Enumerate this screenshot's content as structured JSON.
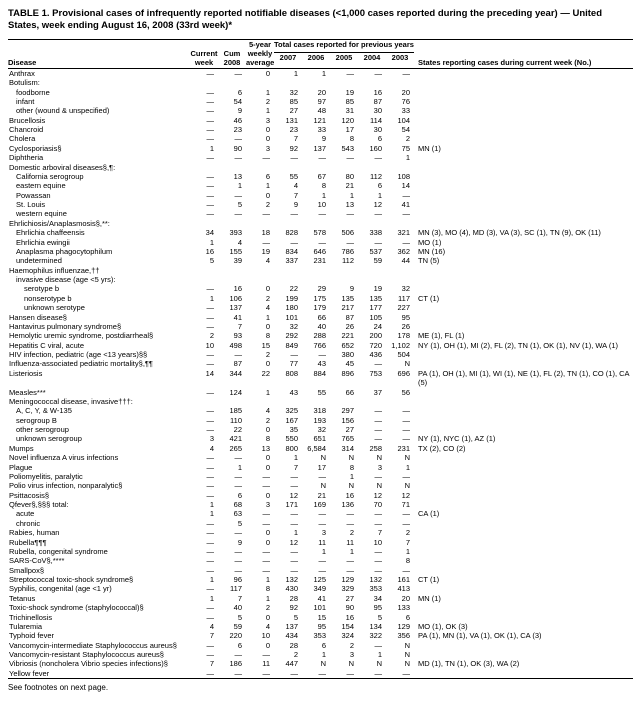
{
  "title": "TABLE 1. Provisional cases of infrequently reported notifiable diseases (<1,000 cases reported during the preceding year) — United States, week ending August 16, 2008 (33rd week)*",
  "footnote": "See footnotes on next page.",
  "head": {
    "disease": "Disease",
    "current_week": "Current week",
    "cum_2008": "Cum 2008",
    "five_year_avg": "5-year weekly average†",
    "total_span": "Total cases reported for previous years",
    "y2007": "2007",
    "y2006": "2006",
    "y2005": "2005",
    "y2004": "2004",
    "y2003": "2003",
    "states": "States reporting cases during current week (No.)"
  },
  "rows": [
    {
      "d": "Anthrax",
      "i": 0,
      "v": [
        "—",
        "—",
        "0",
        "1",
        "1",
        "—",
        "—",
        "—"
      ],
      "s": ""
    },
    {
      "d": "Botulism:",
      "i": 0,
      "v": [
        "",
        "",
        "",
        "",
        "",
        "",
        "",
        ""
      ],
      "s": ""
    },
    {
      "d": "foodborne",
      "i": 1,
      "v": [
        "—",
        "6",
        "1",
        "32",
        "20",
        "19",
        "16",
        "20"
      ],
      "s": ""
    },
    {
      "d": "infant",
      "i": 1,
      "v": [
        "—",
        "54",
        "2",
        "85",
        "97",
        "85",
        "87",
        "76"
      ],
      "s": ""
    },
    {
      "d": "other (wound & unspecified)",
      "i": 1,
      "v": [
        "—",
        "9",
        "1",
        "27",
        "48",
        "31",
        "30",
        "33"
      ],
      "s": ""
    },
    {
      "d": "Brucellosis",
      "i": 0,
      "v": [
        "—",
        "46",
        "3",
        "131",
        "121",
        "120",
        "114",
        "104"
      ],
      "s": ""
    },
    {
      "d": "Chancroid",
      "i": 0,
      "v": [
        "—",
        "23",
        "0",
        "23",
        "33",
        "17",
        "30",
        "54"
      ],
      "s": ""
    },
    {
      "d": "Cholera",
      "i": 0,
      "v": [
        "—",
        "—",
        "0",
        "7",
        "9",
        "8",
        "6",
        "2"
      ],
      "s": ""
    },
    {
      "d": "Cyclosporiasis§",
      "i": 0,
      "v": [
        "1",
        "90",
        "3",
        "92",
        "137",
        "543",
        "160",
        "75"
      ],
      "s": "MN (1)"
    },
    {
      "d": "Diphtheria",
      "i": 0,
      "v": [
        "—",
        "—",
        "—",
        "—",
        "—",
        "—",
        "—",
        "1"
      ],
      "s": ""
    },
    {
      "d": "Domestic arboviral diseases§,¶:",
      "i": 0,
      "v": [
        "",
        "",
        "",
        "",
        "",
        "",
        "",
        ""
      ],
      "s": ""
    },
    {
      "d": "California serogroup",
      "i": 1,
      "v": [
        "—",
        "13",
        "6",
        "55",
        "67",
        "80",
        "112",
        "108"
      ],
      "s": ""
    },
    {
      "d": "eastern equine",
      "i": 1,
      "v": [
        "—",
        "1",
        "1",
        "4",
        "8",
        "21",
        "6",
        "14"
      ],
      "s": ""
    },
    {
      "d": "Powassan",
      "i": 1,
      "v": [
        "—",
        "—",
        "0",
        "7",
        "1",
        "1",
        "1",
        "—"
      ],
      "s": ""
    },
    {
      "d": "St. Louis",
      "i": 1,
      "v": [
        "—",
        "5",
        "2",
        "9",
        "10",
        "13",
        "12",
        "41"
      ],
      "s": ""
    },
    {
      "d": "western equine",
      "i": 1,
      "v": [
        "—",
        "—",
        "—",
        "—",
        "—",
        "—",
        "—",
        "—"
      ],
      "s": ""
    },
    {
      "d": "Ehrlichiosis/Anaplasmosis§,**:",
      "i": 0,
      "v": [
        "",
        "",
        "",
        "",
        "",
        "",
        "",
        ""
      ],
      "s": ""
    },
    {
      "d": "Ehrlichia chaffeensis",
      "i": 1,
      "v": [
        "34",
        "393",
        "18",
        "828",
        "578",
        "506",
        "338",
        "321"
      ],
      "s": "MN (3), MO (4), MD (3), VA (3), SC (1), TN (9), OK (11)"
    },
    {
      "d": "Ehrlichia ewingii",
      "i": 1,
      "v": [
        "1",
        "4",
        "—",
        "—",
        "—",
        "—",
        "—",
        "—"
      ],
      "s": "MO (1)"
    },
    {
      "d": "Anaplasma phagocytophilum",
      "i": 1,
      "v": [
        "16",
        "155",
        "19",
        "834",
        "646",
        "786",
        "537",
        "362"
      ],
      "s": "MN (16)"
    },
    {
      "d": "undetermined",
      "i": 1,
      "v": [
        "5",
        "39",
        "4",
        "337",
        "231",
        "112",
        "59",
        "44"
      ],
      "s": "TN (5)"
    },
    {
      "d": "Haemophilus influenzae,††",
      "i": 0,
      "v": [
        "",
        "",
        "",
        "",
        "",
        "",
        "",
        ""
      ],
      "s": ""
    },
    {
      "d": "invasive disease (age <5 yrs):",
      "i": 1,
      "v": [
        "",
        "",
        "",
        "",
        "",
        "",
        "",
        ""
      ],
      "s": ""
    },
    {
      "d": "serotype b",
      "i": 2,
      "v": [
        "—",
        "16",
        "0",
        "22",
        "29",
        "9",
        "19",
        "32"
      ],
      "s": ""
    },
    {
      "d": "nonserotype b",
      "i": 2,
      "v": [
        "1",
        "106",
        "2",
        "199",
        "175",
        "135",
        "135",
        "117"
      ],
      "s": "CT (1)"
    },
    {
      "d": "unknown serotype",
      "i": 2,
      "v": [
        "—",
        "137",
        "4",
        "180",
        "179",
        "217",
        "177",
        "227"
      ],
      "s": ""
    },
    {
      "d": "Hansen disease§",
      "i": 0,
      "v": [
        "—",
        "41",
        "1",
        "101",
        "66",
        "87",
        "105",
        "95"
      ],
      "s": ""
    },
    {
      "d": "Hantavirus pulmonary syndrome§",
      "i": 0,
      "v": [
        "—",
        "7",
        "0",
        "32",
        "40",
        "26",
        "24",
        "26"
      ],
      "s": ""
    },
    {
      "d": "Hemolytic uremic syndrome, postdiarrheal§",
      "i": 0,
      "v": [
        "2",
        "93",
        "8",
        "292",
        "288",
        "221",
        "200",
        "178"
      ],
      "s": "ME (1), FL (1)"
    },
    {
      "d": "Hepatitis C viral, acute",
      "i": 0,
      "v": [
        "10",
        "498",
        "15",
        "849",
        "766",
        "652",
        "720",
        "1,102"
      ],
      "s": "NY (1), OH (1), MI (2), FL (2), TN (1), OK (1), NV (1), WA (1)"
    },
    {
      "d": "HIV infection, pediatric (age <13 years)§§",
      "i": 0,
      "v": [
        "—",
        "—",
        "2",
        "—",
        "—",
        "380",
        "436",
        "504"
      ],
      "s": ""
    },
    {
      "d": "Influenza-associated pediatric mortality§,¶¶",
      "i": 0,
      "v": [
        "—",
        "87",
        "0",
        "77",
        "43",
        "45",
        "—",
        "N"
      ],
      "s": ""
    },
    {
      "d": "Listeriosis",
      "i": 0,
      "v": [
        "14",
        "344",
        "22",
        "808",
        "884",
        "896",
        "753",
        "696"
      ],
      "s": "PA (1), OH (1), MI (1), WI (1), NE (1), FL (2), TN (1), CO (1), CA (5)"
    },
    {
      "d": "Measles***",
      "i": 0,
      "v": [
        "—",
        "124",
        "1",
        "43",
        "55",
        "66",
        "37",
        "56"
      ],
      "s": ""
    },
    {
      "d": "Meningococcal disease, invasive†††:",
      "i": 0,
      "v": [
        "",
        "",
        "",
        "",
        "",
        "",
        "",
        ""
      ],
      "s": ""
    },
    {
      "d": "A, C, Y, & W-135",
      "i": 1,
      "v": [
        "—",
        "185",
        "4",
        "325",
        "318",
        "297",
        "—",
        "—"
      ],
      "s": ""
    },
    {
      "d": "serogroup B",
      "i": 1,
      "v": [
        "—",
        "110",
        "2",
        "167",
        "193",
        "156",
        "—",
        "—"
      ],
      "s": ""
    },
    {
      "d": "other serogroup",
      "i": 1,
      "v": [
        "—",
        "22",
        "0",
        "35",
        "32",
        "27",
        "—",
        "—"
      ],
      "s": ""
    },
    {
      "d": "unknown serogroup",
      "i": 1,
      "v": [
        "3",
        "421",
        "8",
        "550",
        "651",
        "765",
        "—",
        "—"
      ],
      "s": "NY (1), NYC (1), AZ (1)"
    },
    {
      "d": "Mumps",
      "i": 0,
      "v": [
        "4",
        "265",
        "13",
        "800",
        "6,584",
        "314",
        "258",
        "231"
      ],
      "s": "TX (2), CO (2)"
    },
    {
      "d": "Novel influenza A virus infections",
      "i": 0,
      "v": [
        "—",
        "—",
        "0",
        "1",
        "N",
        "N",
        "N",
        "N"
      ],
      "s": ""
    },
    {
      "d": "Plague",
      "i": 0,
      "v": [
        "—",
        "1",
        "0",
        "7",
        "17",
        "8",
        "3",
        "1"
      ],
      "s": ""
    },
    {
      "d": "Poliomyelitis, paralytic",
      "i": 0,
      "v": [
        "—",
        "—",
        "—",
        "—",
        "—",
        "1",
        "—",
        "—"
      ],
      "s": ""
    },
    {
      "d": "Polio virus infection, nonparalytic§",
      "i": 0,
      "v": [
        "—",
        "—",
        "—",
        "—",
        "N",
        "N",
        "N",
        "N"
      ],
      "s": ""
    },
    {
      "d": "Psittacosis§",
      "i": 0,
      "v": [
        "—",
        "6",
        "0",
        "12",
        "21",
        "16",
        "12",
        "12"
      ],
      "s": ""
    },
    {
      "d": "Qfever§,§§§ total:",
      "i": 0,
      "v": [
        "1",
        "68",
        "3",
        "171",
        "169",
        "136",
        "70",
        "71"
      ],
      "s": ""
    },
    {
      "d": "acute",
      "i": 1,
      "v": [
        "1",
        "63",
        "—",
        "—",
        "—",
        "—",
        "—",
        "—"
      ],
      "s": "CA (1)"
    },
    {
      "d": "chronic",
      "i": 1,
      "v": [
        "—",
        "5",
        "—",
        "—",
        "—",
        "—",
        "—",
        "—"
      ],
      "s": ""
    },
    {
      "d": "Rabies, human",
      "i": 0,
      "v": [
        "—",
        "—",
        "0",
        "1",
        "3",
        "2",
        "7",
        "2"
      ],
      "s": ""
    },
    {
      "d": "Rubella¶¶¶",
      "i": 0,
      "v": [
        "—",
        "9",
        "0",
        "12",
        "11",
        "11",
        "10",
        "7"
      ],
      "s": ""
    },
    {
      "d": "Rubella, congenital syndrome",
      "i": 0,
      "v": [
        "—",
        "—",
        "—",
        "—",
        "1",
        "1",
        "—",
        "1"
      ],
      "s": ""
    },
    {
      "d": "SARS-CoV§,****",
      "i": 0,
      "v": [
        "—",
        "—",
        "—",
        "—",
        "—",
        "—",
        "—",
        "8"
      ],
      "s": ""
    },
    {
      "d": "Smallpox§",
      "i": 0,
      "v": [
        "—",
        "—",
        "—",
        "—",
        "—",
        "—",
        "—",
        "—"
      ],
      "s": ""
    },
    {
      "d": "Streptococcal toxic-shock syndrome§",
      "i": 0,
      "v": [
        "1",
        "96",
        "1",
        "132",
        "125",
        "129",
        "132",
        "161"
      ],
      "s": "CT (1)"
    },
    {
      "d": "Syphilis, congenital (age <1 yr)",
      "i": 0,
      "v": [
        "—",
        "117",
        "8",
        "430",
        "349",
        "329",
        "353",
        "413"
      ],
      "s": ""
    },
    {
      "d": "Tetanus",
      "i": 0,
      "v": [
        "1",
        "7",
        "1",
        "28",
        "41",
        "27",
        "34",
        "20"
      ],
      "s": "MN (1)"
    },
    {
      "d": "Toxic-shock syndrome (staphylococcal)§",
      "i": 0,
      "v": [
        "—",
        "40",
        "2",
        "92",
        "101",
        "90",
        "95",
        "133"
      ],
      "s": ""
    },
    {
      "d": "Trichinellosis",
      "i": 0,
      "v": [
        "—",
        "5",
        "0",
        "5",
        "15",
        "16",
        "5",
        "6"
      ],
      "s": ""
    },
    {
      "d": "Tularemia",
      "i": 0,
      "v": [
        "4",
        "59",
        "4",
        "137",
        "95",
        "154",
        "134",
        "129"
      ],
      "s": "MO (1), OK (3)"
    },
    {
      "d": "Typhoid fever",
      "i": 0,
      "v": [
        "7",
        "220",
        "10",
        "434",
        "353",
        "324",
        "322",
        "356"
      ],
      "s": "PA (1), MN (1), VA (1), OK (1), CA (3)"
    },
    {
      "d": "Vancomycin-intermediate Staphylococcus aureus§",
      "i": 0,
      "v": [
        "—",
        "6",
        "0",
        "28",
        "6",
        "2",
        "—",
        "N"
      ],
      "s": ""
    },
    {
      "d": "Vancomycin-resistant Staphylococcus aureus§",
      "i": 0,
      "v": [
        "—",
        "—",
        "—",
        "2",
        "1",
        "3",
        "1",
        "N"
      ],
      "s": ""
    },
    {
      "d": "Vibriosis (noncholera Vibrio species infections)§",
      "i": 0,
      "v": [
        "7",
        "186",
        "11",
        "447",
        "N",
        "N",
        "N",
        "N"
      ],
      "s": "MD (1), TN (1), OK (3), WA (2)"
    },
    {
      "d": "Yellow fever",
      "i": 0,
      "v": [
        "—",
        "—",
        "—",
        "—",
        "—",
        "—",
        "—",
        "—"
      ],
      "s": ""
    }
  ]
}
